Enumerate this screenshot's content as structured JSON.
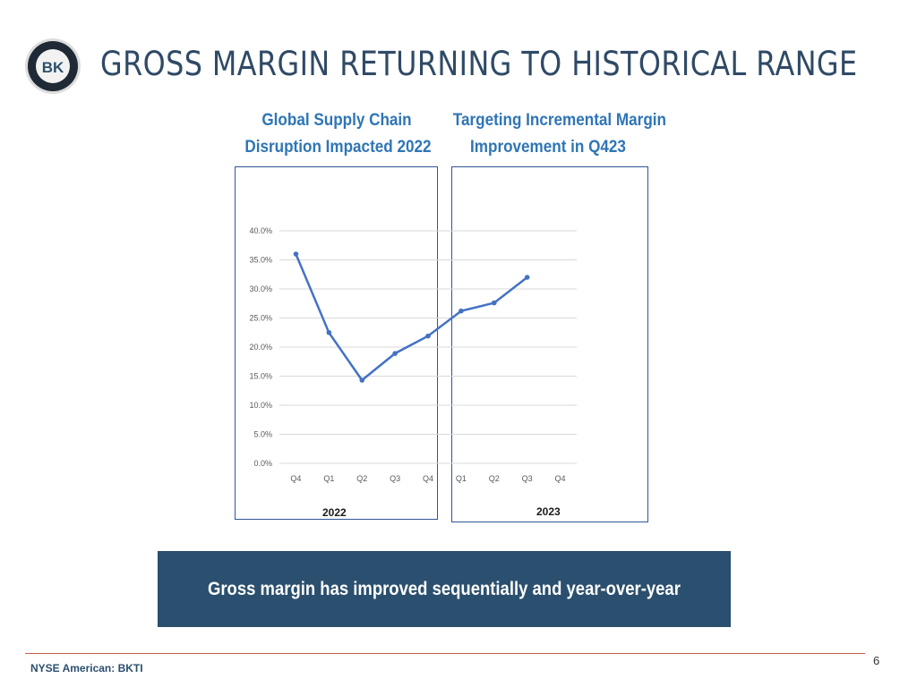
{
  "header": {
    "title": "GROSS MARGIN RETURNING TO HISTORICAL RANGE",
    "logo_text": "BK"
  },
  "panels": [
    {
      "title_line1": "Global Supply Chain",
      "title_line2": "Disruption Impacted 2022",
      "year": "2022"
    },
    {
      "title_line1": "Targeting Incremental Margin",
      "title_line2": "Improvement in Q423",
      "year": "2023"
    }
  ],
  "chart_data": {
    "type": "line",
    "categories": [
      "Q4",
      "Q1",
      "Q2",
      "Q3",
      "Q4",
      "Q1",
      "Q2",
      "Q3",
      "Q4"
    ],
    "values": [
      36.0,
      22.5,
      14.3,
      18.9,
      21.9,
      26.2,
      27.6,
      32.0,
      null
    ],
    "ylim": [
      0,
      40
    ],
    "yticks": [
      "0.0%",
      "5.0%",
      "10.0%",
      "15.0%",
      "20.0%",
      "25.0%",
      "30.0%",
      "35.0%",
      "40.0%"
    ],
    "title": "",
    "xlabel": "",
    "ylabel": "",
    "grid": true,
    "color": "#4472c4"
  },
  "banner": {
    "text": "Gross margin has improved sequentially and year-over-year"
  },
  "footer": {
    "ticker": "NYSE American: BKTI",
    "page": "6"
  },
  "colors": {
    "title": "#2f4a66",
    "accent": "#2e75b6",
    "banner": "#2b4f6e",
    "rule": "#c55a4a"
  }
}
